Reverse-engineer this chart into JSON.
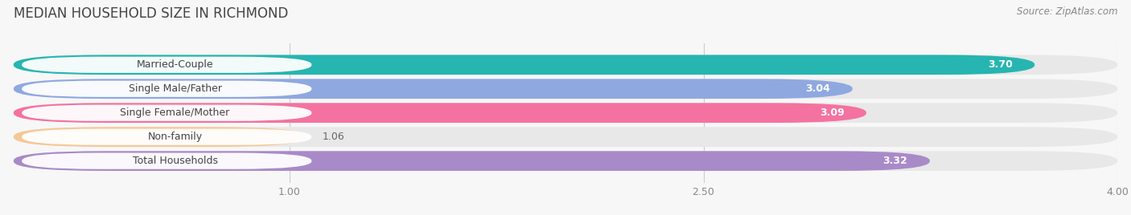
{
  "title": "MEDIAN HOUSEHOLD SIZE IN RICHMOND",
  "source": "Source: ZipAtlas.com",
  "categories": [
    "Married-Couple",
    "Single Male/Father",
    "Single Female/Mother",
    "Non-family",
    "Total Households"
  ],
  "values": [
    3.7,
    3.04,
    3.09,
    1.06,
    3.32
  ],
  "bar_colors": [
    "#26b5b0",
    "#8fa8e0",
    "#f472a0",
    "#f5c896",
    "#a98ac8"
  ],
  "value_labels": [
    "3.70",
    "3.04",
    "3.09",
    "1.06",
    "3.32"
  ],
  "xmin": 0.0,
  "xmax": 4.0,
  "xticks": [
    1.0,
    2.5,
    4.0
  ],
  "xtick_labels": [
    "1.00",
    "2.50",
    "4.00"
  ],
  "background_color": "#f7f7f7",
  "bar_background_color": "#e8e8e8",
  "title_fontsize": 12,
  "source_fontsize": 8.5,
  "label_fontsize": 9,
  "value_fontsize": 9
}
